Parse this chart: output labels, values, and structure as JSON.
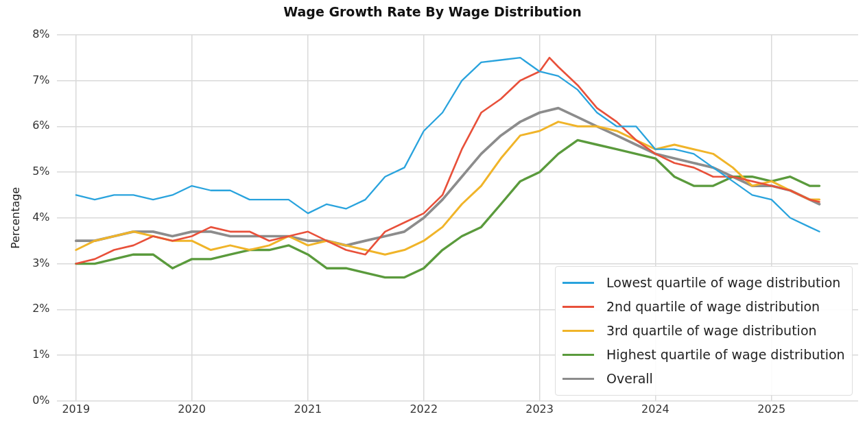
{
  "chart_data": {
    "type": "line",
    "title": "Wage Growth Rate By Wage Distribution",
    "ylabel": "Percentage",
    "x": [
      "2019-01",
      "2019-03",
      "2019-05",
      "2019-07",
      "2019-09",
      "2019-11",
      "2020-01",
      "2020-03",
      "2020-05",
      "2020-07",
      "2020-09",
      "2020-11",
      "2021-01",
      "2021-03",
      "2021-05",
      "2021-07",
      "2021-09",
      "2021-11",
      "2022-01",
      "2022-03",
      "2022-05",
      "2022-07",
      "2022-09",
      "2022-11",
      "2023-01",
      "2023-03",
      "2023-05",
      "2023-07",
      "2023-09",
      "2023-11",
      "2024-01",
      "2024-03",
      "2024-05",
      "2024-07",
      "2024-09",
      "2024-11",
      "2025-01",
      "2025-03",
      "2025-05",
      "2025-06"
    ],
    "series": [
      {
        "name": "Lowest quartile of wage distribution",
        "color": "#29a3dd",
        "values": [
          4.5,
          4.4,
          4.5,
          4.5,
          4.4,
          4.5,
          4.7,
          4.6,
          4.6,
          4.4,
          4.4,
          4.4,
          4.1,
          4.3,
          4.2,
          4.4,
          4.9,
          5.1,
          5.9,
          6.3,
          7.0,
          7.4,
          7.45,
          7.5,
          7.2,
          7.1,
          6.8,
          6.3,
          6.0,
          6.0,
          5.5,
          5.5,
          5.4,
          5.1,
          4.8,
          4.5,
          4.4,
          4.0,
          3.8,
          3.7
        ]
      },
      {
        "name": "2nd quartile of wage distribution",
        "color": "#e8503a",
        "x": [
          "2019-01",
          "2019-03",
          "2019-05",
          "2019-07",
          "2019-09",
          "2019-11",
          "2020-01",
          "2020-03",
          "2020-05",
          "2020-07",
          "2020-09",
          "2020-11",
          "2021-01",
          "2021-03",
          "2021-05",
          "2021-07",
          "2021-09",
          "2021-11",
          "2022-01",
          "2022-03",
          "2022-05",
          "2022-07",
          "2022-09",
          "2022-11",
          "2023-01",
          "2023-02",
          "2023-03",
          "2023-05",
          "2023-07",
          "2023-09",
          "2023-11",
          "2024-01",
          "2024-03",
          "2024-05",
          "2024-07",
          "2024-09",
          "2024-11",
          "2025-01",
          "2025-03",
          "2025-05",
          "2025-06"
        ],
        "values": [
          3.0,
          3.1,
          3.3,
          3.4,
          3.6,
          3.5,
          3.6,
          3.8,
          3.7,
          3.7,
          3.5,
          3.6,
          3.7,
          3.5,
          3.3,
          3.2,
          3.7,
          3.9,
          4.1,
          4.5,
          5.5,
          6.3,
          6.6,
          7.0,
          7.2,
          7.5,
          7.3,
          6.9,
          6.4,
          6.1,
          5.7,
          5.4,
          5.2,
          5.1,
          4.9,
          4.9,
          4.8,
          4.7,
          4.6,
          4.4,
          4.35
        ]
      },
      {
        "name": "3rd quartile of wage distribution",
        "color": "#f0b429",
        "values": [
          3.3,
          3.5,
          3.6,
          3.7,
          3.6,
          3.5,
          3.5,
          3.3,
          3.4,
          3.3,
          3.4,
          3.6,
          3.4,
          3.5,
          3.4,
          3.3,
          3.2,
          3.3,
          3.5,
          3.8,
          4.3,
          4.7,
          5.3,
          5.8,
          5.9,
          6.1,
          6.0,
          6.0,
          5.9,
          5.7,
          5.5,
          5.6,
          5.5,
          5.4,
          5.1,
          4.7,
          4.8,
          4.6,
          4.4,
          4.4
        ]
      },
      {
        "name": "Highest quartile of wage distribution",
        "color": "#5a9a3c",
        "values": [
          3.0,
          3.0,
          3.1,
          3.2,
          3.2,
          2.9,
          3.1,
          3.1,
          3.2,
          3.3,
          3.3,
          3.4,
          3.2,
          2.9,
          2.9,
          2.8,
          2.7,
          2.7,
          2.9,
          3.3,
          3.6,
          3.8,
          4.3,
          4.8,
          5.0,
          5.4,
          5.7,
          5.6,
          5.5,
          5.4,
          5.3,
          4.9,
          4.7,
          4.7,
          4.9,
          4.9,
          4.8,
          4.9,
          4.7,
          4.7
        ]
      },
      {
        "name": "Overall",
        "color": "#8c8c8c",
        "values": [
          3.5,
          3.5,
          3.6,
          3.7,
          3.7,
          3.6,
          3.7,
          3.7,
          3.6,
          3.6,
          3.6,
          3.6,
          3.5,
          3.5,
          3.4,
          3.5,
          3.6,
          3.7,
          4.0,
          4.4,
          4.9,
          5.4,
          5.8,
          6.1,
          6.3,
          6.4,
          6.2,
          6.0,
          5.8,
          5.6,
          5.4,
          5.3,
          5.2,
          5.1,
          4.9,
          4.7,
          4.7,
          4.6,
          4.4,
          4.3
        ]
      }
    ],
    "xlim": [
      "2018-11",
      "2025-10"
    ],
    "xticks": [
      "2019",
      "2020",
      "2021",
      "2022",
      "2023",
      "2024",
      "2025"
    ],
    "ylim": [
      0,
      8
    ],
    "yticks": [
      {
        "value": 0,
        "label": "0%"
      },
      {
        "value": 1,
        "label": "1%"
      },
      {
        "value": 2,
        "label": "2%"
      },
      {
        "value": 3,
        "label": "3%"
      },
      {
        "value": 4,
        "label": "4%"
      },
      {
        "value": 5,
        "label": "5%"
      },
      {
        "value": 6,
        "label": "6%"
      },
      {
        "value": 7,
        "label": "7%"
      },
      {
        "value": 8,
        "label": "8%"
      }
    ],
    "grid": true,
    "legend": "bottom right",
    "marker": "none",
    "line_style": "solid"
  }
}
